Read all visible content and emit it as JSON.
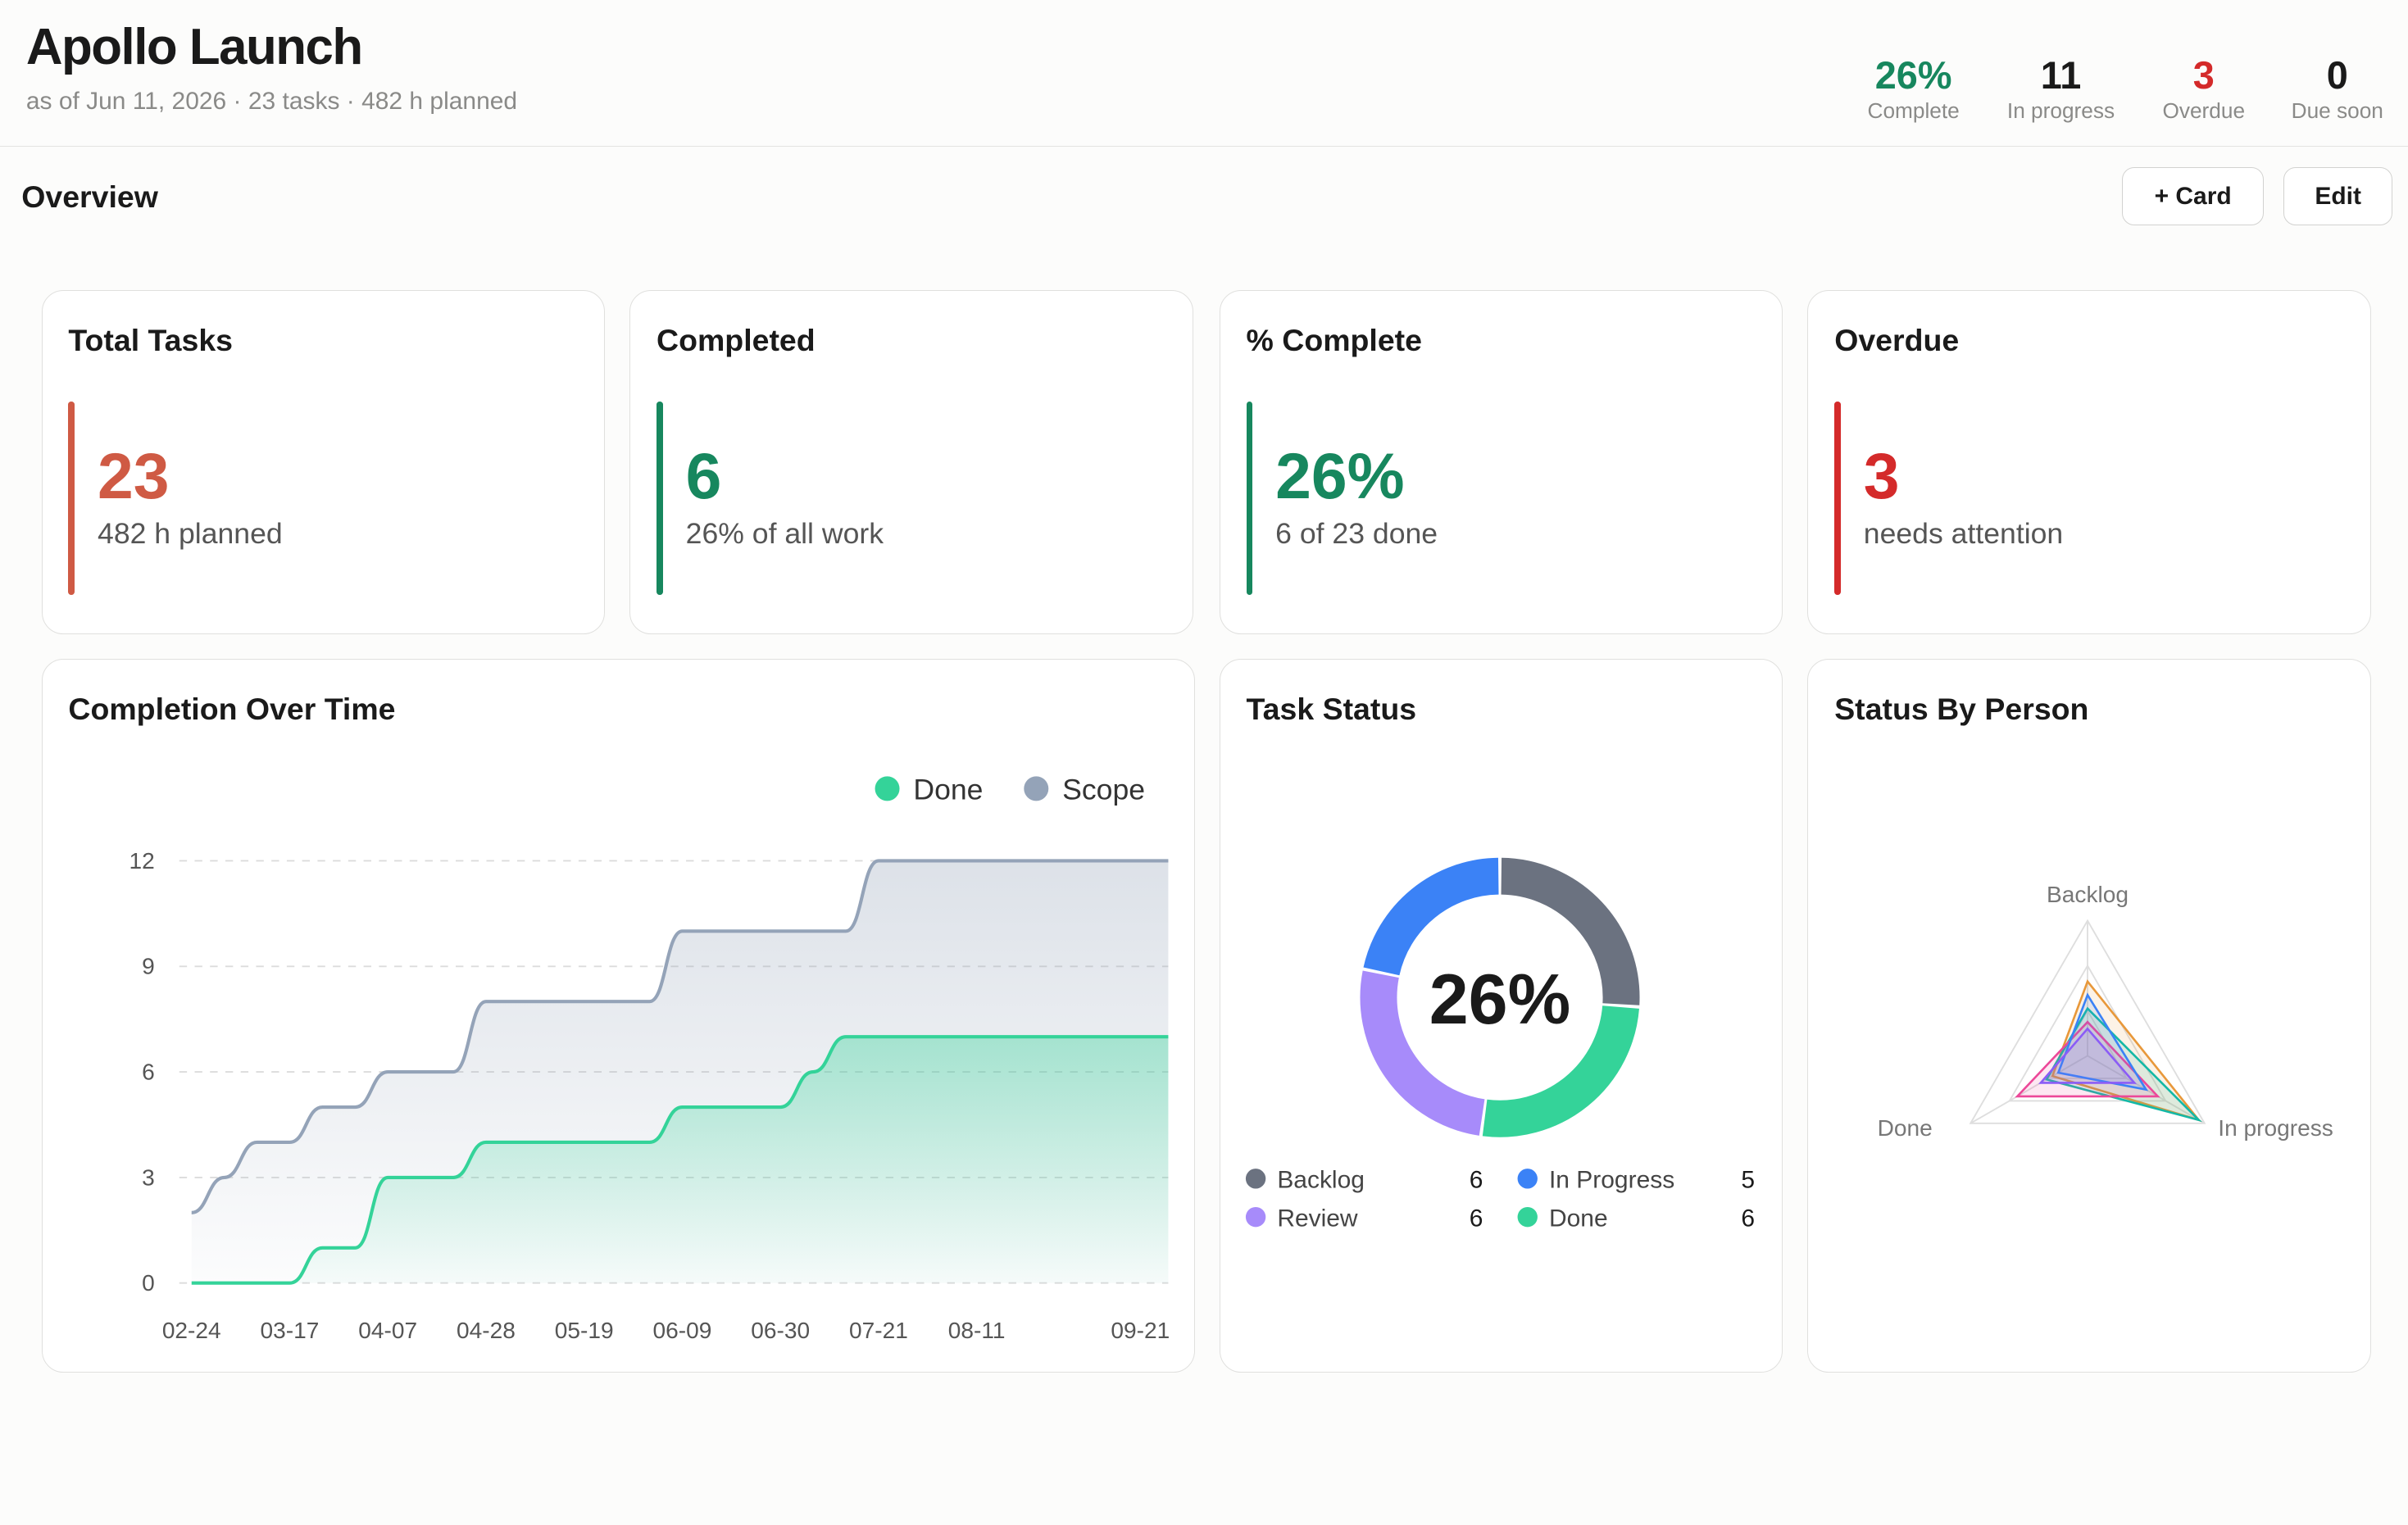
{
  "header": {
    "title": "Apollo Launch",
    "subtitle": "as of Jun 11, 2026 · 23 tasks · 482 h planned",
    "kpis": [
      {
        "value": "26%",
        "label": "Complete",
        "color": "#17875e"
      },
      {
        "value": "11",
        "label": "In progress",
        "color": "#1a1a1a"
      },
      {
        "value": "3",
        "label": "Overdue",
        "color": "#d42a2a"
      },
      {
        "value": "0",
        "label": "Due soon",
        "color": "#1a1a1a"
      }
    ]
  },
  "toolbar": {
    "section_title": "Overview",
    "add_card_label": "+ Card",
    "edit_label": "Edit"
  },
  "stats": [
    {
      "title": "Total Tasks",
      "value": "23",
      "sub": "482 h planned",
      "color": "#cf5a44"
    },
    {
      "title": "Completed",
      "value": "6",
      "sub": "26% of all work",
      "color": "#17875e"
    },
    {
      "title": "% Complete",
      "value": "26%",
      "sub": "6 of 23 done",
      "color": "#17875e"
    },
    {
      "title": "Overdue",
      "value": "3",
      "sub": "needs attention",
      "color": "#d42a2a"
    }
  ],
  "cards": {
    "completion_title": "Completion Over Time",
    "status_title": "Task Status",
    "person_title": "Status By Person"
  },
  "chart_data": [
    {
      "type": "area",
      "title": "Completion Over Time",
      "x_tick_labels": [
        "02-24",
        "03-17",
        "04-07",
        "04-28",
        "05-19",
        "06-09",
        "06-30",
        "07-21",
        "08-11",
        "09-21"
      ],
      "x_dates": [
        "2026-02-24",
        "2026-03-03",
        "2026-03-10",
        "2026-03-17",
        "2026-03-24",
        "2026-03-31",
        "2026-04-07",
        "2026-04-14",
        "2026-04-21",
        "2026-04-28",
        "2026-05-05",
        "2026-05-12",
        "2026-05-19",
        "2026-05-26",
        "2026-06-02",
        "2026-06-09",
        "2026-06-16",
        "2026-06-23",
        "2026-06-30",
        "2026-07-07",
        "2026-07-14",
        "2026-07-21",
        "2026-07-28",
        "2026-08-04",
        "2026-08-11",
        "2026-08-18",
        "2026-08-25",
        "2026-09-01",
        "2026-09-08",
        "2026-09-15",
        "2026-09-21"
      ],
      "ylim": [
        0,
        12
      ],
      "yticks": [
        0,
        3,
        6,
        9,
        12
      ],
      "grid": true,
      "legend": "top-right",
      "series": [
        {
          "name": "Done",
          "color": "#34d399",
          "values": [
            0,
            0,
            0,
            0,
            1,
            1,
            3,
            3,
            3,
            4,
            4,
            4,
            4,
            4,
            4,
            5,
            5,
            5,
            5,
            6,
            7,
            7,
            7,
            7,
            7,
            7,
            7,
            7,
            7,
            7,
            7
          ]
        },
        {
          "name": "Scope",
          "color": "#94a3b8",
          "values": [
            2,
            3,
            4,
            4,
            5,
            5,
            6,
            6,
            6,
            8,
            8,
            8,
            8,
            8,
            8,
            10,
            10,
            10,
            10,
            10,
            10,
            12,
            12,
            12,
            12,
            12,
            12,
            12,
            12,
            12,
            12
          ]
        }
      ]
    },
    {
      "type": "pie",
      "title": "Task Status",
      "center_label": "26%",
      "slices": [
        {
          "name": "Backlog",
          "value": 6,
          "color": "#6b7280"
        },
        {
          "name": "In Progress",
          "value": 5,
          "color": "#3b82f6"
        },
        {
          "name": "Review",
          "value": 6,
          "color": "#a78bfa"
        },
        {
          "name": "Done",
          "value": 6,
          "color": "#34d399"
        }
      ]
    },
    {
      "type": "radar",
      "title": "Status By Person",
      "axes": [
        "Backlog",
        "In progress",
        "Done"
      ],
      "series": [
        {
          "color": "#e8983a",
          "values": [
            0.55,
            0.95,
            0.3
          ]
        },
        {
          "color": "#14b8a6",
          "values": [
            0.35,
            0.95,
            0.35
          ]
        },
        {
          "color": "#ec4899",
          "values": [
            0.25,
            0.6,
            0.6
          ]
        },
        {
          "color": "#3b82f6",
          "values": [
            0.45,
            0.5,
            0.25
          ]
        },
        {
          "color": "#8b5cf6",
          "values": [
            0.2,
            0.4,
            0.4
          ]
        }
      ]
    }
  ]
}
